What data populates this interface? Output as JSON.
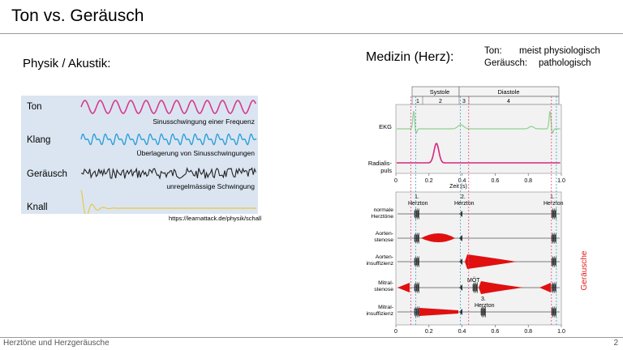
{
  "slide": {
    "title": "Ton vs. Geräusch",
    "footer": "Herztöne und Herzgeräusche",
    "page_number": "2"
  },
  "physics": {
    "heading": "Physik / Akustik:",
    "rows": [
      {
        "label": "Ton",
        "caption": "Sinusschwingung einer Frequenz",
        "color": "#d63a8f"
      },
      {
        "label": "Klang",
        "caption": "Überlagerung von Sinusschwingungen",
        "color": "#2ea0da"
      },
      {
        "label": "Geräusch",
        "caption": "unregelmässige Schwingung",
        "color": "#222222"
      },
      {
        "label": "Knall",
        "caption": "",
        "color": "#e8c844"
      }
    ],
    "source": "https://learnattack.de/physik/schall"
  },
  "medicine": {
    "heading": "Medizin (Herz):",
    "ton_key": "Ton:",
    "ton_value": "meist physiologisch",
    "geraeusch_key": "Geräusch:",
    "geraeusch_value": "pathologisch",
    "vertical_label": "Geräusche",
    "vertical_label_color": "#e02020"
  },
  "heart_figure": {
    "phases": {
      "systole": "Systole",
      "diastole": "Diastole"
    },
    "phase_numbers": [
      "1",
      "2",
      "3",
      "4"
    ],
    "ekg_label": "EKG",
    "radialis_label": [
      "Radialis-",
      "puls"
    ],
    "time_axis_label": "Zeit (s)",
    "time_ticks": [
      "0",
      "0.2",
      "0.4",
      "0.6",
      "0.8",
      "1.0"
    ],
    "herzton_markers": [
      {
        "num": "1.",
        "label": "Herzton"
      },
      {
        "num": "2.",
        "label": "Herzton"
      },
      {
        "num": "1.",
        "label": "Herzton"
      }
    ],
    "row_labels": [
      [
        "normale",
        "Herztöne"
      ],
      [
        "Aorten-",
        "stenose"
      ],
      [
        "Aorten-",
        "insuffizienz"
      ],
      [
        "Mitral-",
        "stenose"
      ],
      [
        "Mitral-",
        "insuffizienz"
      ]
    ],
    "mot_label": "MÖT",
    "third_tone": [
      "3.",
      "Herzton"
    ],
    "ekg_color": "#8fd08f",
    "pulse_color": "#d6267c",
    "murmur_color": "#e01010"
  }
}
